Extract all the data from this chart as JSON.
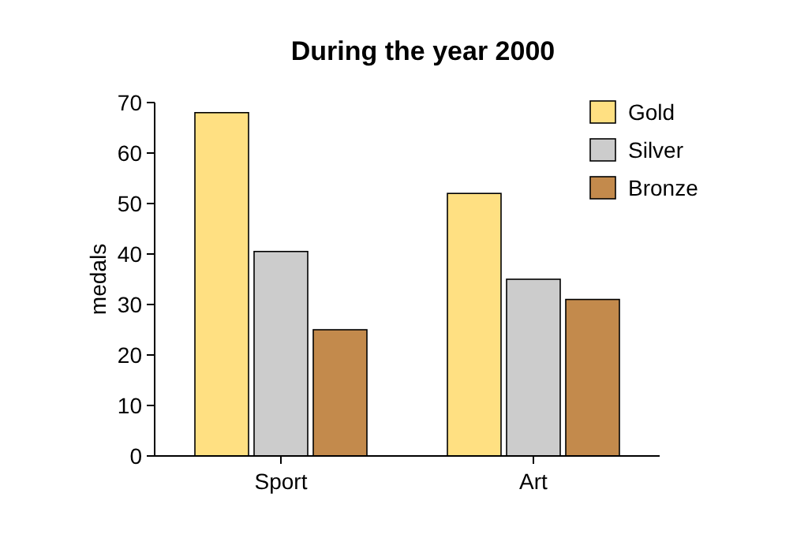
{
  "chart_data": {
    "type": "bar",
    "title": "During the year 2000",
    "ylabel": "medals",
    "categories": [
      "Sport",
      "Art"
    ],
    "series": [
      {
        "name": "Gold",
        "color": "#ffe082",
        "values": [
          68,
          52
        ]
      },
      {
        "name": "Silver",
        "color": "#cccccc",
        "values": [
          40.5,
          35
        ]
      },
      {
        "name": "Bronze",
        "color": "#c38a4c",
        "values": [
          25,
          31
        ]
      }
    ],
    "ylim": [
      0,
      70
    ],
    "yticks": [
      0,
      10,
      20,
      30,
      40,
      50,
      60,
      70
    ],
    "grid": false,
    "legend": "top right"
  }
}
